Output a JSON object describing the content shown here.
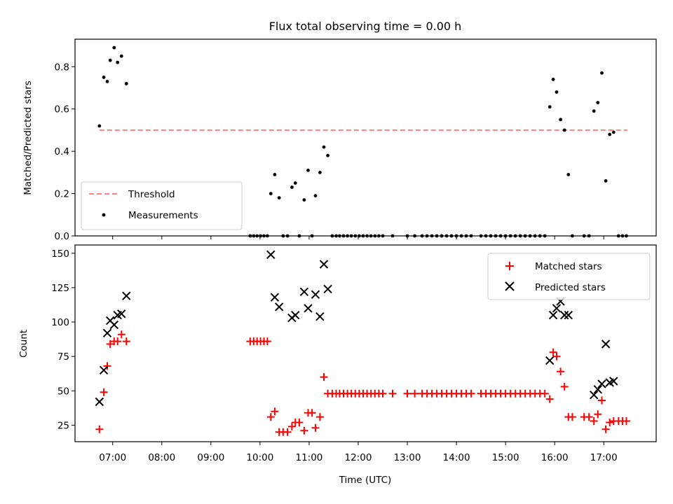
{
  "chart_data": [
    {
      "type": "scatter",
      "title": "Flux total observing time = 0.00 h",
      "xlabel": "",
      "ylabel": "Matched/Predicted stars",
      "xlim": [
        6.233,
        18.067
      ],
      "ylim": [
        0.0,
        0.93
      ],
      "yticks": [
        "0.0",
        "0.2",
        "0.4",
        "0.6",
        "0.8"
      ],
      "xticks": [
        "07:00",
        "08:00",
        "09:00",
        "10:00",
        "11:00",
        "12:00",
        "13:00",
        "14:00",
        "15:00",
        "16:00",
        "17:00"
      ],
      "grid": false,
      "legend_position": "lower-left",
      "threshold": {
        "name": "Threshold",
        "value": 0.5,
        "x_range": [
          6.73,
          17.48
        ],
        "color": "#ff7f7f",
        "style": "dashed"
      },
      "series": [
        {
          "name": "Measurements",
          "marker": "dot",
          "color": "#000000",
          "points": [
            [
              6.73,
              0.52
            ],
            [
              6.82,
              0.75
            ],
            [
              6.89,
              0.73
            ],
            [
              6.95,
              0.83
            ],
            [
              7.03,
              0.89
            ],
            [
              7.1,
              0.82
            ],
            [
              7.18,
              0.85
            ],
            [
              7.28,
              0.72
            ],
            [
              9.8,
              0.0
            ],
            [
              9.87,
              0.0
            ],
            [
              9.94,
              0.0
            ],
            [
              10.01,
              0.0
            ],
            [
              10.08,
              0.0
            ],
            [
              10.15,
              0.0
            ],
            [
              10.22,
              0.2
            ],
            [
              10.3,
              0.29
            ],
            [
              10.39,
              0.18
            ],
            [
              10.47,
              0.0
            ],
            [
              10.56,
              0.0
            ],
            [
              10.65,
              0.23
            ],
            [
              10.72,
              0.25
            ],
            [
              10.8,
              0.0
            ],
            [
              10.9,
              0.17
            ],
            [
              10.98,
              0.31
            ],
            [
              11.06,
              0.0
            ],
            [
              11.13,
              0.19
            ],
            [
              11.22,
              0.3
            ],
            [
              11.3,
              0.42
            ],
            [
              11.38,
              0.38
            ],
            [
              11.47,
              0.0
            ],
            [
              11.55,
              0.0
            ],
            [
              11.62,
              0.0
            ],
            [
              11.7,
              0.0
            ],
            [
              11.78,
              0.0
            ],
            [
              11.86,
              0.0
            ],
            [
              11.94,
              0.0
            ],
            [
              12.02,
              0.0
            ],
            [
              12.1,
              0.0
            ],
            [
              12.18,
              0.0
            ],
            [
              12.26,
              0.0
            ],
            [
              12.34,
              0.0
            ],
            [
              12.42,
              0.0
            ],
            [
              12.5,
              0.0
            ],
            [
              12.7,
              0.0
            ],
            [
              13.0,
              0.0
            ],
            [
              13.15,
              0.0
            ],
            [
              13.3,
              0.0
            ],
            [
              13.4,
              0.0
            ],
            [
              13.5,
              0.0
            ],
            [
              13.6,
              0.0
            ],
            [
              13.7,
              0.0
            ],
            [
              13.8,
              0.0
            ],
            [
              13.9,
              0.0
            ],
            [
              14.0,
              0.0
            ],
            [
              14.1,
              0.0
            ],
            [
              14.2,
              0.0
            ],
            [
              14.3,
              0.0
            ],
            [
              14.5,
              0.0
            ],
            [
              14.6,
              0.0
            ],
            [
              14.7,
              0.0
            ],
            [
              14.8,
              0.0
            ],
            [
              14.9,
              0.0
            ],
            [
              15.0,
              0.0
            ],
            [
              15.1,
              0.0
            ],
            [
              15.2,
              0.0
            ],
            [
              15.3,
              0.0
            ],
            [
              15.4,
              0.0
            ],
            [
              15.5,
              0.0
            ],
            [
              15.6,
              0.0
            ],
            [
              15.7,
              0.0
            ],
            [
              15.8,
              0.0
            ],
            [
              15.9,
              0.61
            ],
            [
              15.97,
              0.74
            ],
            [
              16.04,
              0.68
            ],
            [
              16.12,
              0.55
            ],
            [
              16.2,
              0.5
            ],
            [
              16.28,
              0.29
            ],
            [
              16.36,
              0.0
            ],
            [
              16.6,
              0.0
            ],
            [
              16.7,
              0.0
            ],
            [
              16.8,
              0.59
            ],
            [
              16.88,
              0.63
            ],
            [
              16.96,
              0.77
            ],
            [
              17.04,
              0.26
            ],
            [
              17.12,
              0.48
            ],
            [
              17.2,
              0.49
            ],
            [
              17.3,
              0.0
            ],
            [
              17.38,
              0.0
            ],
            [
              17.46,
              0.0
            ]
          ]
        }
      ],
      "legend_entries": [
        "Threshold",
        "Measurements"
      ]
    },
    {
      "type": "scatter",
      "title": "",
      "xlabel": "Time (UTC)",
      "ylabel": "Count",
      "xlim": [
        6.233,
        18.067
      ],
      "ylim": [
        13,
        156
      ],
      "yticks": [
        "25",
        "50",
        "75",
        "100",
        "125",
        "150"
      ],
      "xticks": [
        "07:00",
        "08:00",
        "09:00",
        "10:00",
        "11:00",
        "12:00",
        "13:00",
        "14:00",
        "15:00",
        "16:00",
        "17:00"
      ],
      "grid": false,
      "legend_position": "upper-right",
      "series": [
        {
          "name": "Matched stars",
          "marker": "plus",
          "color": "#ff0000",
          "points": [
            [
              6.73,
              22
            ],
            [
              6.82,
              49
            ],
            [
              6.89,
              68
            ],
            [
              6.95,
              84
            ],
            [
              7.03,
              86
            ],
            [
              7.1,
              86
            ],
            [
              7.18,
              91
            ],
            [
              7.28,
              86
            ],
            [
              9.8,
              86
            ],
            [
              9.87,
              86
            ],
            [
              9.94,
              86
            ],
            [
              10.01,
              86
            ],
            [
              10.08,
              86
            ],
            [
              10.15,
              86
            ],
            [
              10.22,
              31
            ],
            [
              10.3,
              35
            ],
            [
              10.39,
              20
            ],
            [
              10.47,
              20
            ],
            [
              10.56,
              20
            ],
            [
              10.65,
              24
            ],
            [
              10.72,
              27
            ],
            [
              10.8,
              27
            ],
            [
              10.9,
              21
            ],
            [
              10.98,
              34
            ],
            [
              11.06,
              34
            ],
            [
              11.13,
              23
            ],
            [
              11.22,
              31
            ],
            [
              11.3,
              60
            ],
            [
              11.38,
              48
            ],
            [
              11.47,
              48
            ],
            [
              11.55,
              48
            ],
            [
              11.62,
              48
            ],
            [
              11.7,
              48
            ],
            [
              11.78,
              48
            ],
            [
              11.86,
              48
            ],
            [
              11.94,
              48
            ],
            [
              12.02,
              48
            ],
            [
              12.1,
              48
            ],
            [
              12.18,
              48
            ],
            [
              12.26,
              48
            ],
            [
              12.34,
              48
            ],
            [
              12.42,
              48
            ],
            [
              12.5,
              48
            ],
            [
              12.7,
              48
            ],
            [
              13.0,
              48
            ],
            [
              13.15,
              48
            ],
            [
              13.3,
              48
            ],
            [
              13.4,
              48
            ],
            [
              13.5,
              48
            ],
            [
              13.6,
              48
            ],
            [
              13.7,
              48
            ],
            [
              13.8,
              48
            ],
            [
              13.9,
              48
            ],
            [
              14.0,
              48
            ],
            [
              14.1,
              48
            ],
            [
              14.2,
              48
            ],
            [
              14.3,
              48
            ],
            [
              14.5,
              48
            ],
            [
              14.6,
              48
            ],
            [
              14.7,
              48
            ],
            [
              14.8,
              48
            ],
            [
              14.9,
              48
            ],
            [
              15.0,
              48
            ],
            [
              15.1,
              48
            ],
            [
              15.2,
              48
            ],
            [
              15.3,
              48
            ],
            [
              15.4,
              48
            ],
            [
              15.5,
              48
            ],
            [
              15.6,
              48
            ],
            [
              15.7,
              48
            ],
            [
              15.8,
              48
            ],
            [
              15.9,
              44
            ],
            [
              15.97,
              78
            ],
            [
              16.04,
              75
            ],
            [
              16.12,
              64
            ],
            [
              16.2,
              53
            ],
            [
              16.28,
              31
            ],
            [
              16.36,
              31
            ],
            [
              16.6,
              31
            ],
            [
              16.7,
              31
            ],
            [
              16.8,
              28
            ],
            [
              16.88,
              33
            ],
            [
              16.96,
              43
            ],
            [
              17.04,
              22
            ],
            [
              17.12,
              27
            ],
            [
              17.2,
              28
            ],
            [
              17.3,
              28
            ],
            [
              17.38,
              28
            ],
            [
              17.46,
              28
            ]
          ]
        },
        {
          "name": "Predicted stars",
          "marker": "x",
          "color": "#000000",
          "points": [
            [
              6.73,
              42
            ],
            [
              6.82,
              65
            ],
            [
              6.89,
              92
            ],
            [
              6.95,
              101
            ],
            [
              7.03,
              98
            ],
            [
              7.1,
              105
            ],
            [
              7.18,
              106
            ],
            [
              7.28,
              119
            ],
            [
              10.22,
              149
            ],
            [
              10.3,
              118
            ],
            [
              10.39,
              111
            ],
            [
              10.65,
              103
            ],
            [
              10.72,
              105
            ],
            [
              10.9,
              122
            ],
            [
              10.98,
              110
            ],
            [
              11.13,
              120
            ],
            [
              11.22,
              104
            ],
            [
              11.3,
              142
            ],
            [
              11.38,
              124
            ],
            [
              15.9,
              72
            ],
            [
              15.97,
              105
            ],
            [
              16.04,
              110
            ],
            [
              16.12,
              115
            ],
            [
              16.2,
              105
            ],
            [
              16.28,
              105
            ],
            [
              16.8,
              47
            ],
            [
              16.88,
              51
            ],
            [
              16.96,
              55
            ],
            [
              17.04,
              84
            ],
            [
              17.12,
              56
            ],
            [
              17.2,
              57
            ]
          ]
        }
      ],
      "legend_entries": [
        "Matched stars",
        "Predicted stars"
      ]
    }
  ]
}
